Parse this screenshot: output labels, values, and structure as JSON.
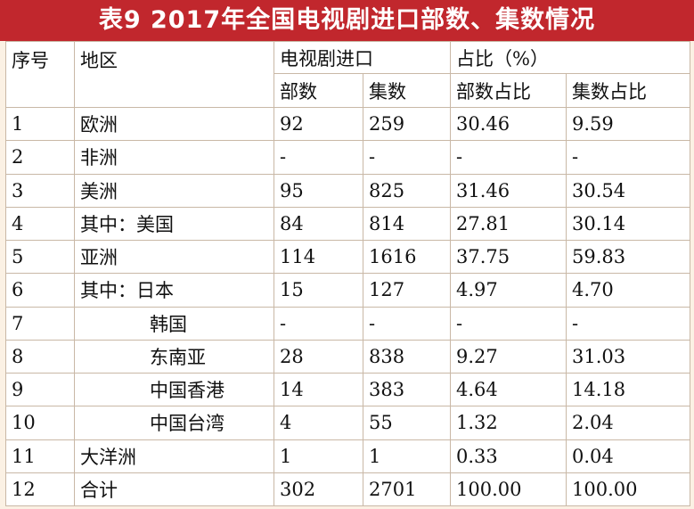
{
  "title": "表9  2017年全国电视剧进口部数、集数情况",
  "header": {
    "seq": "序号",
    "region": "地区",
    "import": "电视剧进口",
    "share": "占比（%）",
    "parts": "部数",
    "episodes": "集数",
    "parts_share": "部数占比",
    "episodes_share": "集数占比"
  },
  "rows": [
    {
      "no": "1",
      "region": "欧洲",
      "parts": "92",
      "episodes": "259",
      "parts_share": "30.46",
      "episodes_share": "9.59"
    },
    {
      "no": "2",
      "region": "非洲",
      "parts": "-",
      "episodes": "-",
      "parts_share": "-",
      "episodes_share": "-"
    },
    {
      "no": "3",
      "region": "美洲",
      "parts": "95",
      "episodes": "825",
      "parts_share": "31.46",
      "episodes_share": "30.54"
    },
    {
      "no": "4",
      "region": "其中：美国",
      "parts": "84",
      "episodes": "814",
      "parts_share": "27.81",
      "episodes_share": "30.14"
    },
    {
      "no": "5",
      "region": "亚洲",
      "parts": "114",
      "episodes": "1616",
      "parts_share": "37.75",
      "episodes_share": "59.83"
    },
    {
      "no": "6",
      "region": "其中：日本",
      "parts": "15",
      "episodes": "127",
      "parts_share": "4.97",
      "episodes_share": "4.70"
    },
    {
      "no": "7",
      "region": "韩国",
      "parts": "-",
      "episodes": "-",
      "parts_share": "-",
      "episodes_share": "-"
    },
    {
      "no": "8",
      "region": "东南亚",
      "parts": "28",
      "episodes": "838",
      "parts_share": "9.27",
      "episodes_share": "31.03"
    },
    {
      "no": "9",
      "region": "中国香港",
      "parts": "14",
      "episodes": "383",
      "parts_share": "4.64",
      "episodes_share": "14.18"
    },
    {
      "no": "10",
      "region": "中国台湾",
      "parts": "4",
      "episodes": "55",
      "parts_share": "1.32",
      "episodes_share": "2.04"
    },
    {
      "no": "11",
      "region": "大洋洲",
      "parts": "1",
      "episodes": "1",
      "parts_share": "0.33",
      "episodes_share": "0.04"
    },
    {
      "no": "12",
      "region": "合计",
      "parts": "302",
      "episodes": "2701",
      "parts_share": "100.00",
      "episodes_share": "100.00"
    }
  ],
  "colors": {
    "title_bg": "#c1272d",
    "title_text": "#ffffff",
    "page_bg": "#fbf1e4",
    "border": "#c9b8a6"
  }
}
